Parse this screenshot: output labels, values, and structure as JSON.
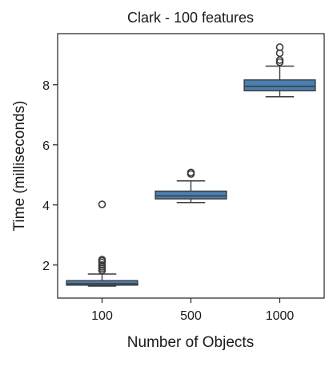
{
  "chart_data": {
    "type": "box",
    "title": "Clark - 100 features",
    "xlabel": "Number of Objects",
    "ylabel": "Time (milliseconds)",
    "categories": [
      "100",
      "500",
      "1000"
    ],
    "ylim": [
      0.9,
      9.7
    ],
    "yticks": [
      2,
      4,
      6,
      8
    ],
    "grid": false,
    "box_color": "#4a7fb0",
    "line_color": "#3a3a3a",
    "series": [
      {
        "category": "100",
        "whisker_low": 1.3,
        "q1": 1.33,
        "median": 1.38,
        "q3": 1.48,
        "whisker_high": 1.7,
        "outliers": [
          1.82,
          1.88,
          1.94,
          2.0,
          2.08,
          2.14,
          2.18,
          4.02
        ]
      },
      {
        "category": "500",
        "whisker_low": 4.08,
        "q1": 4.2,
        "median": 4.3,
        "q3": 4.46,
        "whisker_high": 4.8,
        "outliers": [
          5.03,
          5.08
        ]
      },
      {
        "category": "1000",
        "whisker_low": 7.6,
        "q1": 7.8,
        "median": 7.95,
        "q3": 8.16,
        "whisker_high": 8.62,
        "outliers": [
          8.75,
          8.82,
          9.05,
          9.25
        ]
      }
    ]
  }
}
